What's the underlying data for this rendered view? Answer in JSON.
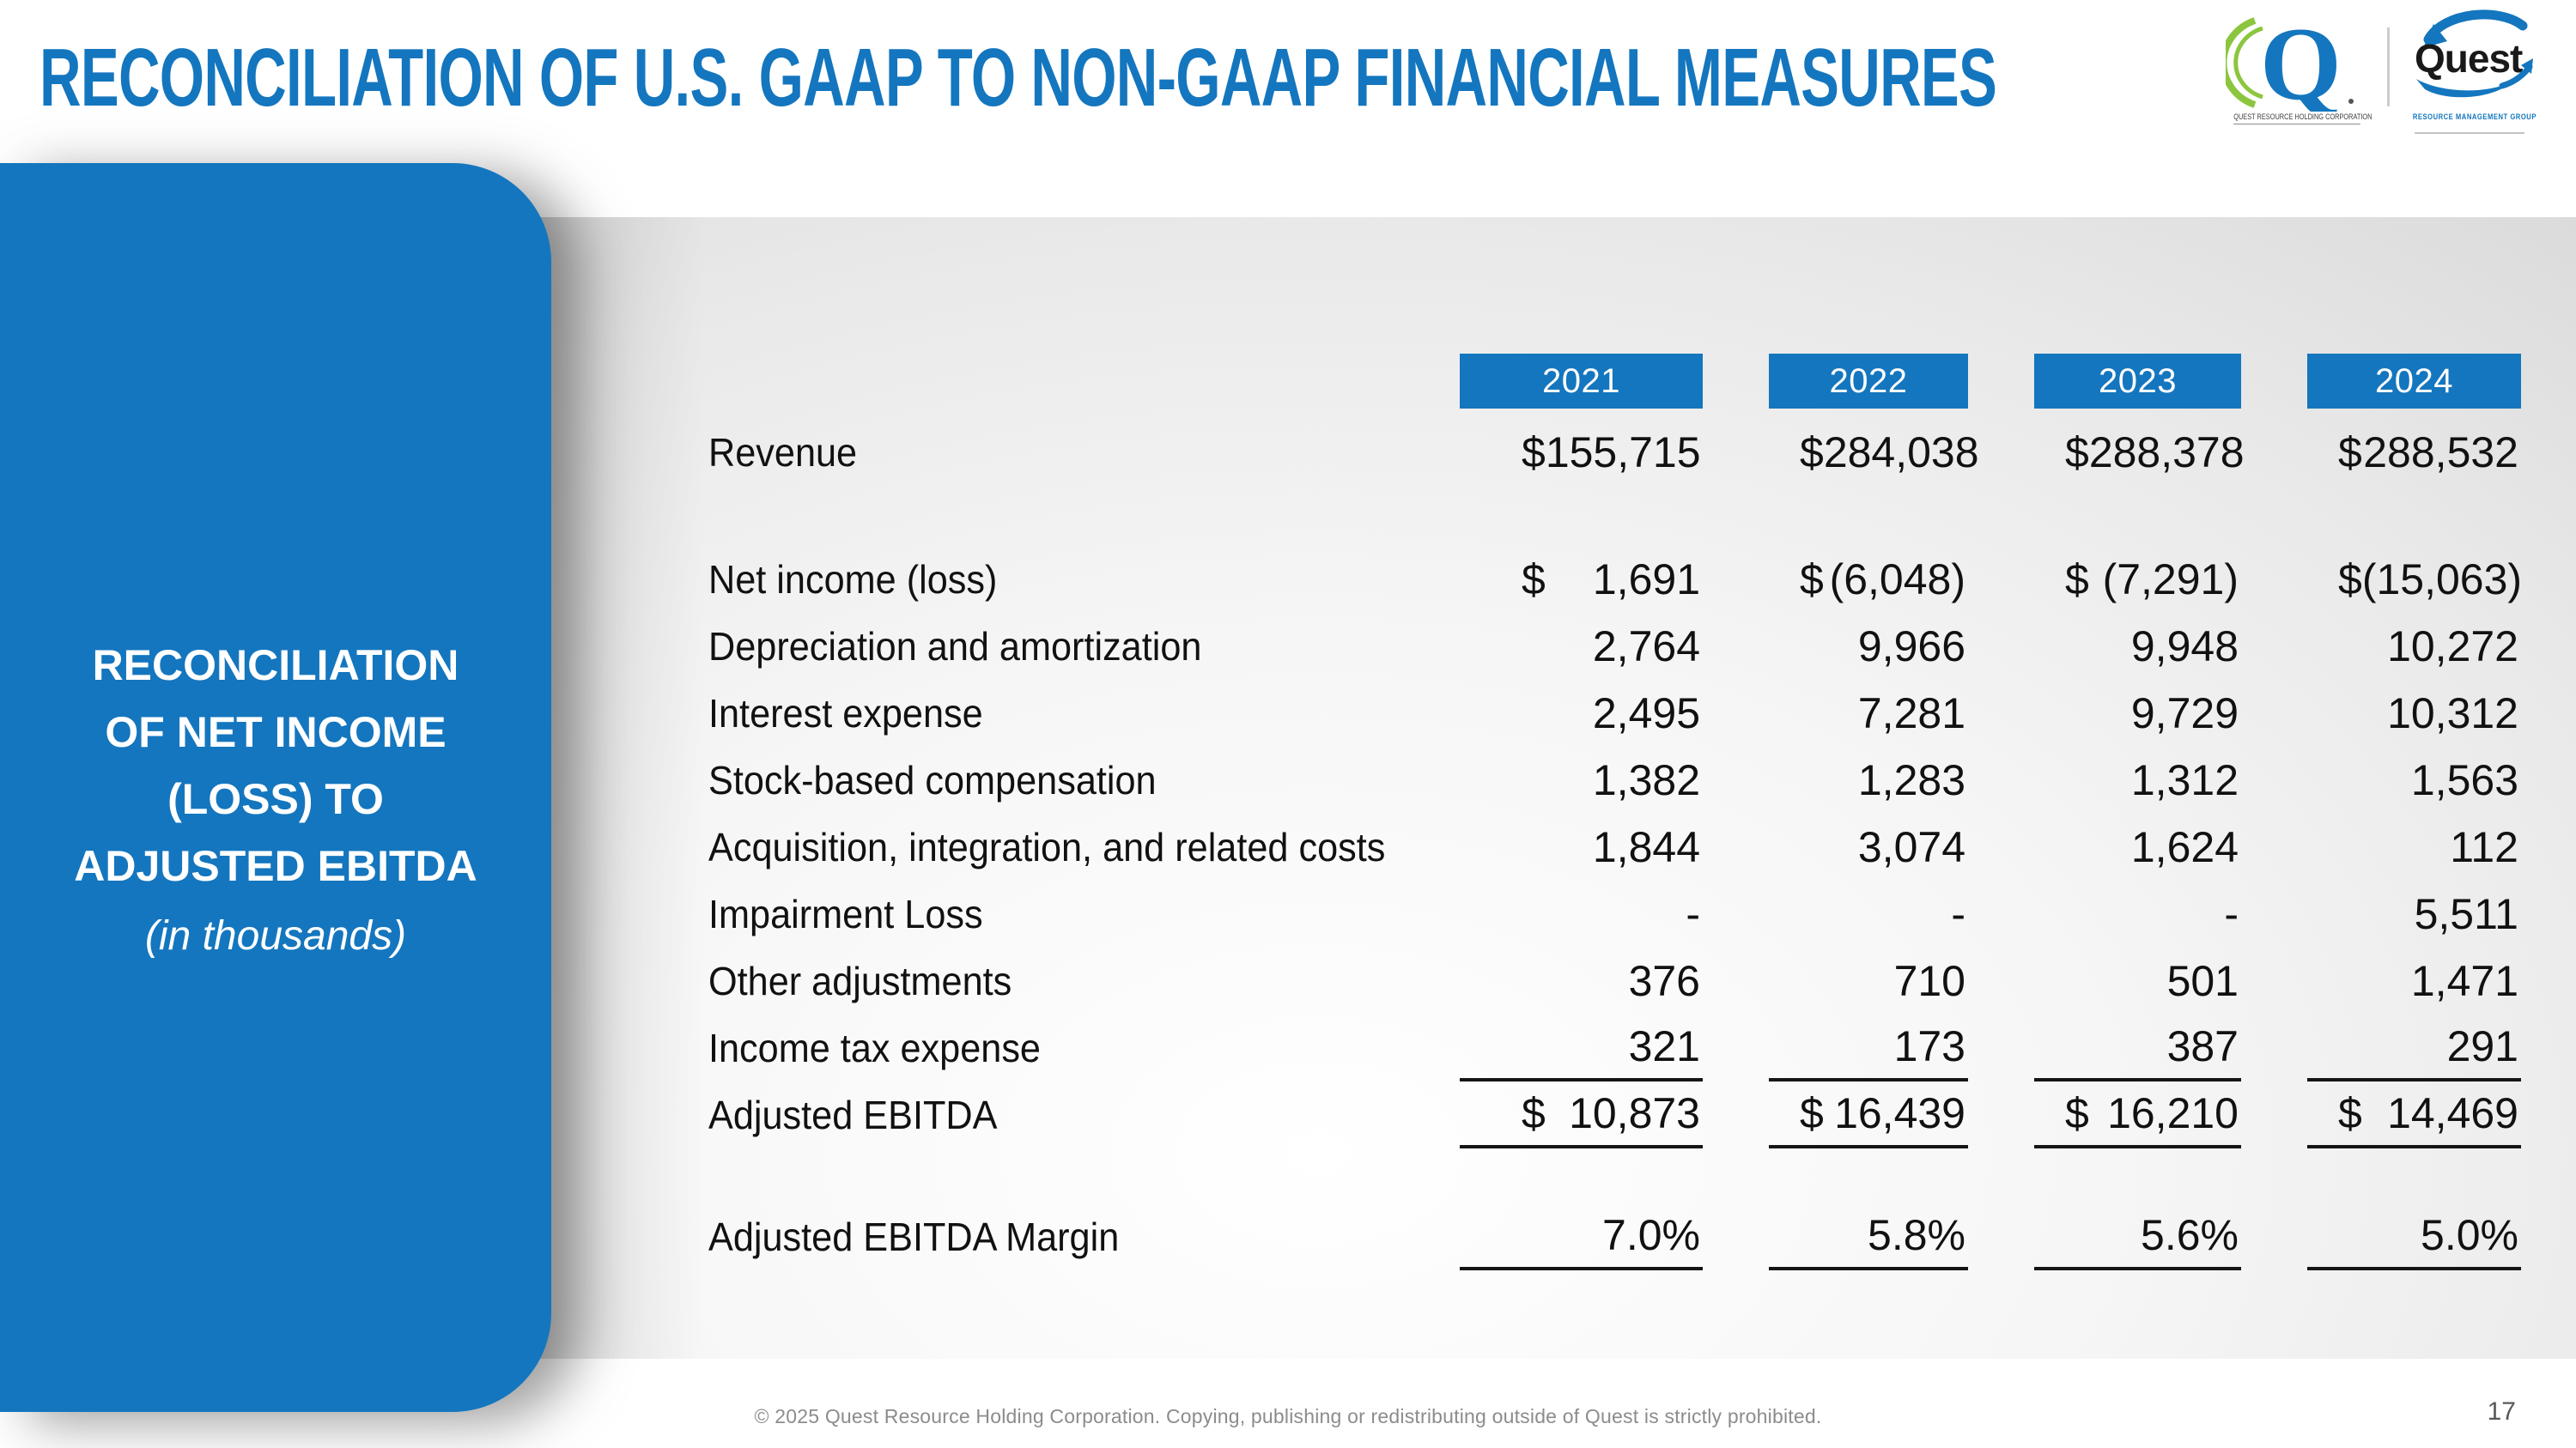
{
  "header": {
    "title": "RECONCILIATION OF U.S. GAAP TO NON-GAAP FINANCIAL MEASURES"
  },
  "logos": {
    "holding": {
      "monogram": "Q",
      "caption": "QUEST RESOURCE HOLDING CORPORATION"
    },
    "rmg": {
      "wordmark": "Quest",
      "caption": "RESOURCE MANAGEMENT GROUP"
    }
  },
  "sidebar": {
    "title_lines": [
      "RECONCILIATION",
      "OF NET INCOME",
      "(LOSS) TO",
      "ADJUSTED EBITDA"
    ],
    "subtitle": "(in thousands)"
  },
  "table": {
    "currency_symbol": "$",
    "years": [
      "2021",
      "2022",
      "2023",
      "2024"
    ],
    "rows": [
      {
        "label": "Revenue",
        "dollar": true,
        "values": [
          "155,715",
          "284,038",
          "288,378",
          "288,532"
        ],
        "blank_row_after": true
      },
      {
        "label": "Net income (loss)",
        "dollar": true,
        "values": [
          "1,691",
          "(6,048)",
          "(7,291)",
          "(15,063)"
        ]
      },
      {
        "label": "Depreciation and amortization",
        "values": [
          "2,764",
          "9,966",
          "9,948",
          "10,272"
        ]
      },
      {
        "label": "Interest expense",
        "values": [
          "2,495",
          "7,281",
          "9,729",
          "10,312"
        ]
      },
      {
        "label": "Stock-based compensation",
        "values": [
          "1,382",
          "1,283",
          "1,312",
          "1,563"
        ]
      },
      {
        "label": "Acquisition, integration, and related costs",
        "values": [
          "1,844",
          "3,074",
          "1,624",
          "112"
        ]
      },
      {
        "label": "Impairment Loss",
        "values": [
          "-",
          "-",
          "-",
          "5,511"
        ]
      },
      {
        "label": "Other adjustments",
        "values": [
          "376",
          "710",
          "501",
          "1,471"
        ]
      },
      {
        "label": "Income tax expense",
        "values": [
          "321",
          "173",
          "387",
          "291"
        ],
        "underline": true
      },
      {
        "label": "Adjusted EBITDA",
        "dollar": true,
        "values": [
          "10,873",
          "16,439",
          "16,210",
          "14,469"
        ],
        "underline": true
      },
      {
        "label": "Adjusted EBITDA Margin",
        "values": [
          "7.0%",
          "5.8%",
          "5.6%",
          "5.0%"
        ],
        "underline": true,
        "blank_row_before": true
      }
    ]
  },
  "footer": {
    "copyright": "© 2025 Quest Resource Holding Corporation.  Copying, publishing or redistributing outside of Quest is strictly prohibited.",
    "page_number": "17"
  },
  "colors": {
    "brand_blue": "#1476BE",
    "logo_green": "#8CC63E",
    "table_text": "#111111",
    "muted_gray": "#8C8C8C"
  }
}
